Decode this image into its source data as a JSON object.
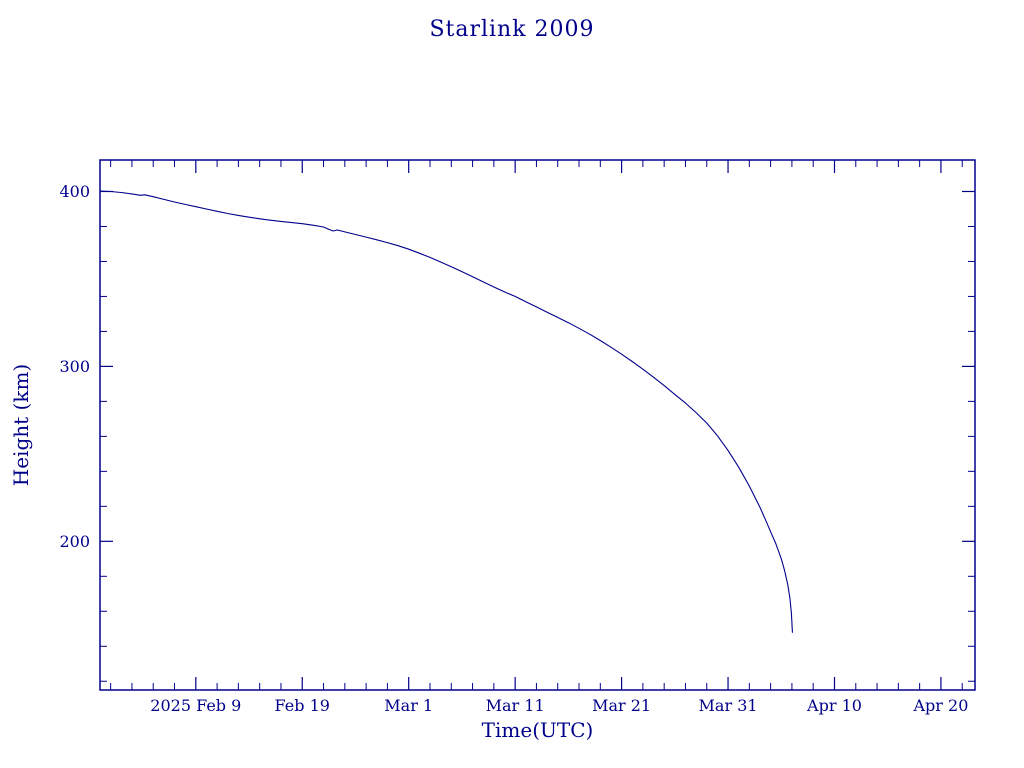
{
  "colors": {
    "ink": "#00008b",
    "background": "#ffffff"
  },
  "chart_data": {
    "type": "line",
    "title": "Starlink 2009",
    "xlabel": "Time(UTC)",
    "ylabel": "Height (km)",
    "line_color": "#00008b",
    "axis_color": "#00008b",
    "x_unit": "days since 2025-01-31 (UTC)",
    "xlim_days": [
      0,
      82.2
    ],
    "ylim": [
      115,
      418
    ],
    "grid": false,
    "legend": "none",
    "x_major_ticks": [
      {
        "day": 9,
        "label": "2025 Feb  9"
      },
      {
        "day": 19,
        "label": "Feb 19"
      },
      {
        "day": 29,
        "label": "Mar  1"
      },
      {
        "day": 39,
        "label": "Mar 11"
      },
      {
        "day": 49,
        "label": "Mar 21"
      },
      {
        "day": 59,
        "label": "Mar 31"
      },
      {
        "day": 69,
        "label": "Apr 10"
      },
      {
        "day": 79,
        "label": "Apr 20"
      }
    ],
    "x_major_step_days": 10,
    "x_minor_step_days": 2,
    "y_major_ticks": [
      {
        "value": 200,
        "label": "200"
      },
      {
        "value": 300,
        "label": "300"
      },
      {
        "value": 400,
        "label": "400"
      }
    ],
    "y_minor_step": 20,
    "series": [
      {
        "name": "orbital height",
        "points": [
          [
            0,
            400.3
          ],
          [
            1,
            400.0
          ],
          [
            2,
            399.4
          ],
          [
            3,
            398.6
          ],
          [
            3.8,
            397.8
          ],
          [
            4.2,
            398.1
          ],
          [
            5,
            397.0
          ],
          [
            6,
            395.5
          ],
          [
            7,
            394.0
          ],
          [
            8,
            392.6
          ],
          [
            9,
            391.3
          ],
          [
            10,
            390.0
          ],
          [
            11,
            388.7
          ],
          [
            12,
            387.4
          ],
          [
            13,
            386.3
          ],
          [
            14,
            385.3
          ],
          [
            15,
            384.4
          ],
          [
            16,
            383.6
          ],
          [
            17,
            382.9
          ],
          [
            18,
            382.2
          ],
          [
            19,
            381.6
          ],
          [
            20,
            380.7
          ],
          [
            21,
            379.7
          ],
          [
            21.5,
            378.3
          ],
          [
            21.9,
            377.4
          ],
          [
            22.3,
            378.0
          ],
          [
            23,
            376.9
          ],
          [
            24,
            375.4
          ],
          [
            25,
            373.9
          ],
          [
            26,
            372.4
          ],
          [
            27,
            370.8
          ],
          [
            28,
            369.0
          ],
          [
            29,
            367.0
          ],
          [
            30,
            364.7
          ],
          [
            31,
            362.3
          ],
          [
            32,
            359.7
          ],
          [
            33,
            357.0
          ],
          [
            34,
            354.2
          ],
          [
            35,
            351.3
          ],
          [
            36,
            348.3
          ],
          [
            37,
            345.4
          ],
          [
            38,
            342.6
          ],
          [
            39,
            340.0
          ],
          [
            40,
            337.0
          ],
          [
            41,
            334.0
          ],
          [
            42,
            331.0
          ],
          [
            43,
            328.0
          ],
          [
            44,
            325.0
          ],
          [
            45,
            321.8
          ],
          [
            46,
            318.4
          ],
          [
            47,
            314.8
          ],
          [
            48,
            311.0
          ],
          [
            49,
            307.0
          ],
          [
            50,
            302.8
          ],
          [
            51,
            298.4
          ],
          [
            52,
            293.8
          ],
          [
            53,
            289.0
          ],
          [
            54,
            284.0
          ],
          [
            55,
            279.0
          ],
          [
            56,
            273.6
          ],
          [
            57,
            267.6
          ],
          [
            58,
            260.4
          ],
          [
            59,
            252.0
          ],
          [
            60,
            242.4
          ],
          [
            61,
            231.6
          ],
          [
            62,
            219.4
          ],
          [
            62.5,
            212.6
          ],
          [
            63,
            205.5
          ],
          [
            63.5,
            198.5
          ],
          [
            64,
            190.0
          ],
          [
            64.3,
            183.5
          ],
          [
            64.6,
            175.5
          ],
          [
            64.8,
            168.0
          ],
          [
            64.95,
            159.0
          ],
          [
            65.05,
            148.0
          ]
        ]
      }
    ]
  }
}
